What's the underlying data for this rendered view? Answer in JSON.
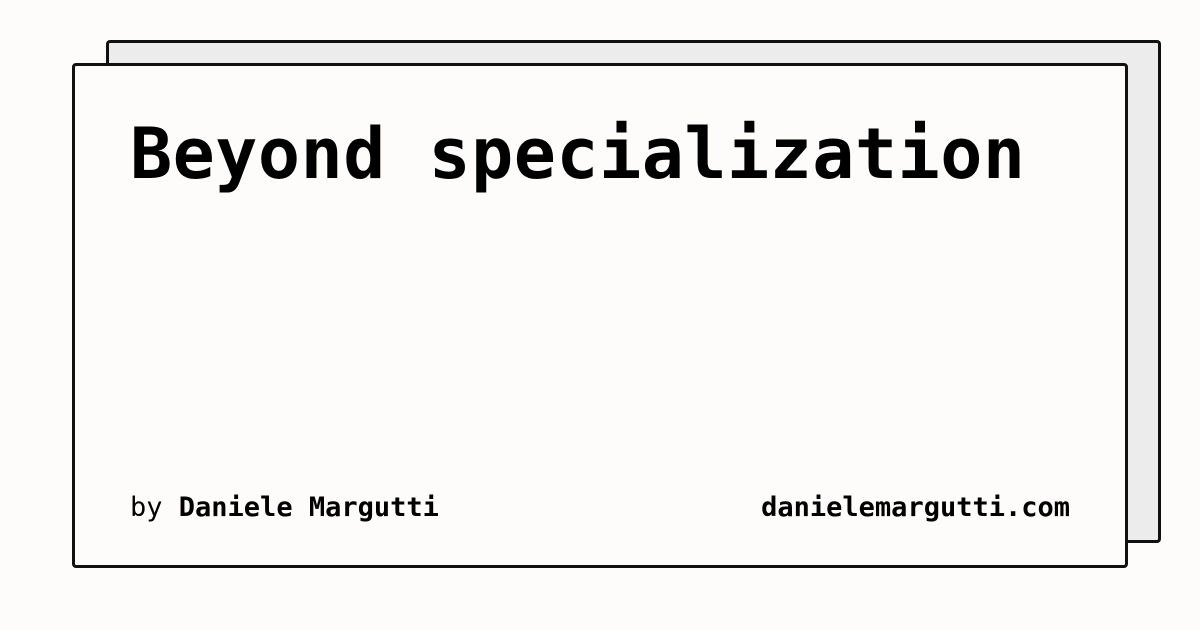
{
  "card": {
    "title": "Beyond specialization",
    "byline_prefix": "by",
    "author": "Daniele Margutti",
    "site": "danielemargutti.com"
  }
}
